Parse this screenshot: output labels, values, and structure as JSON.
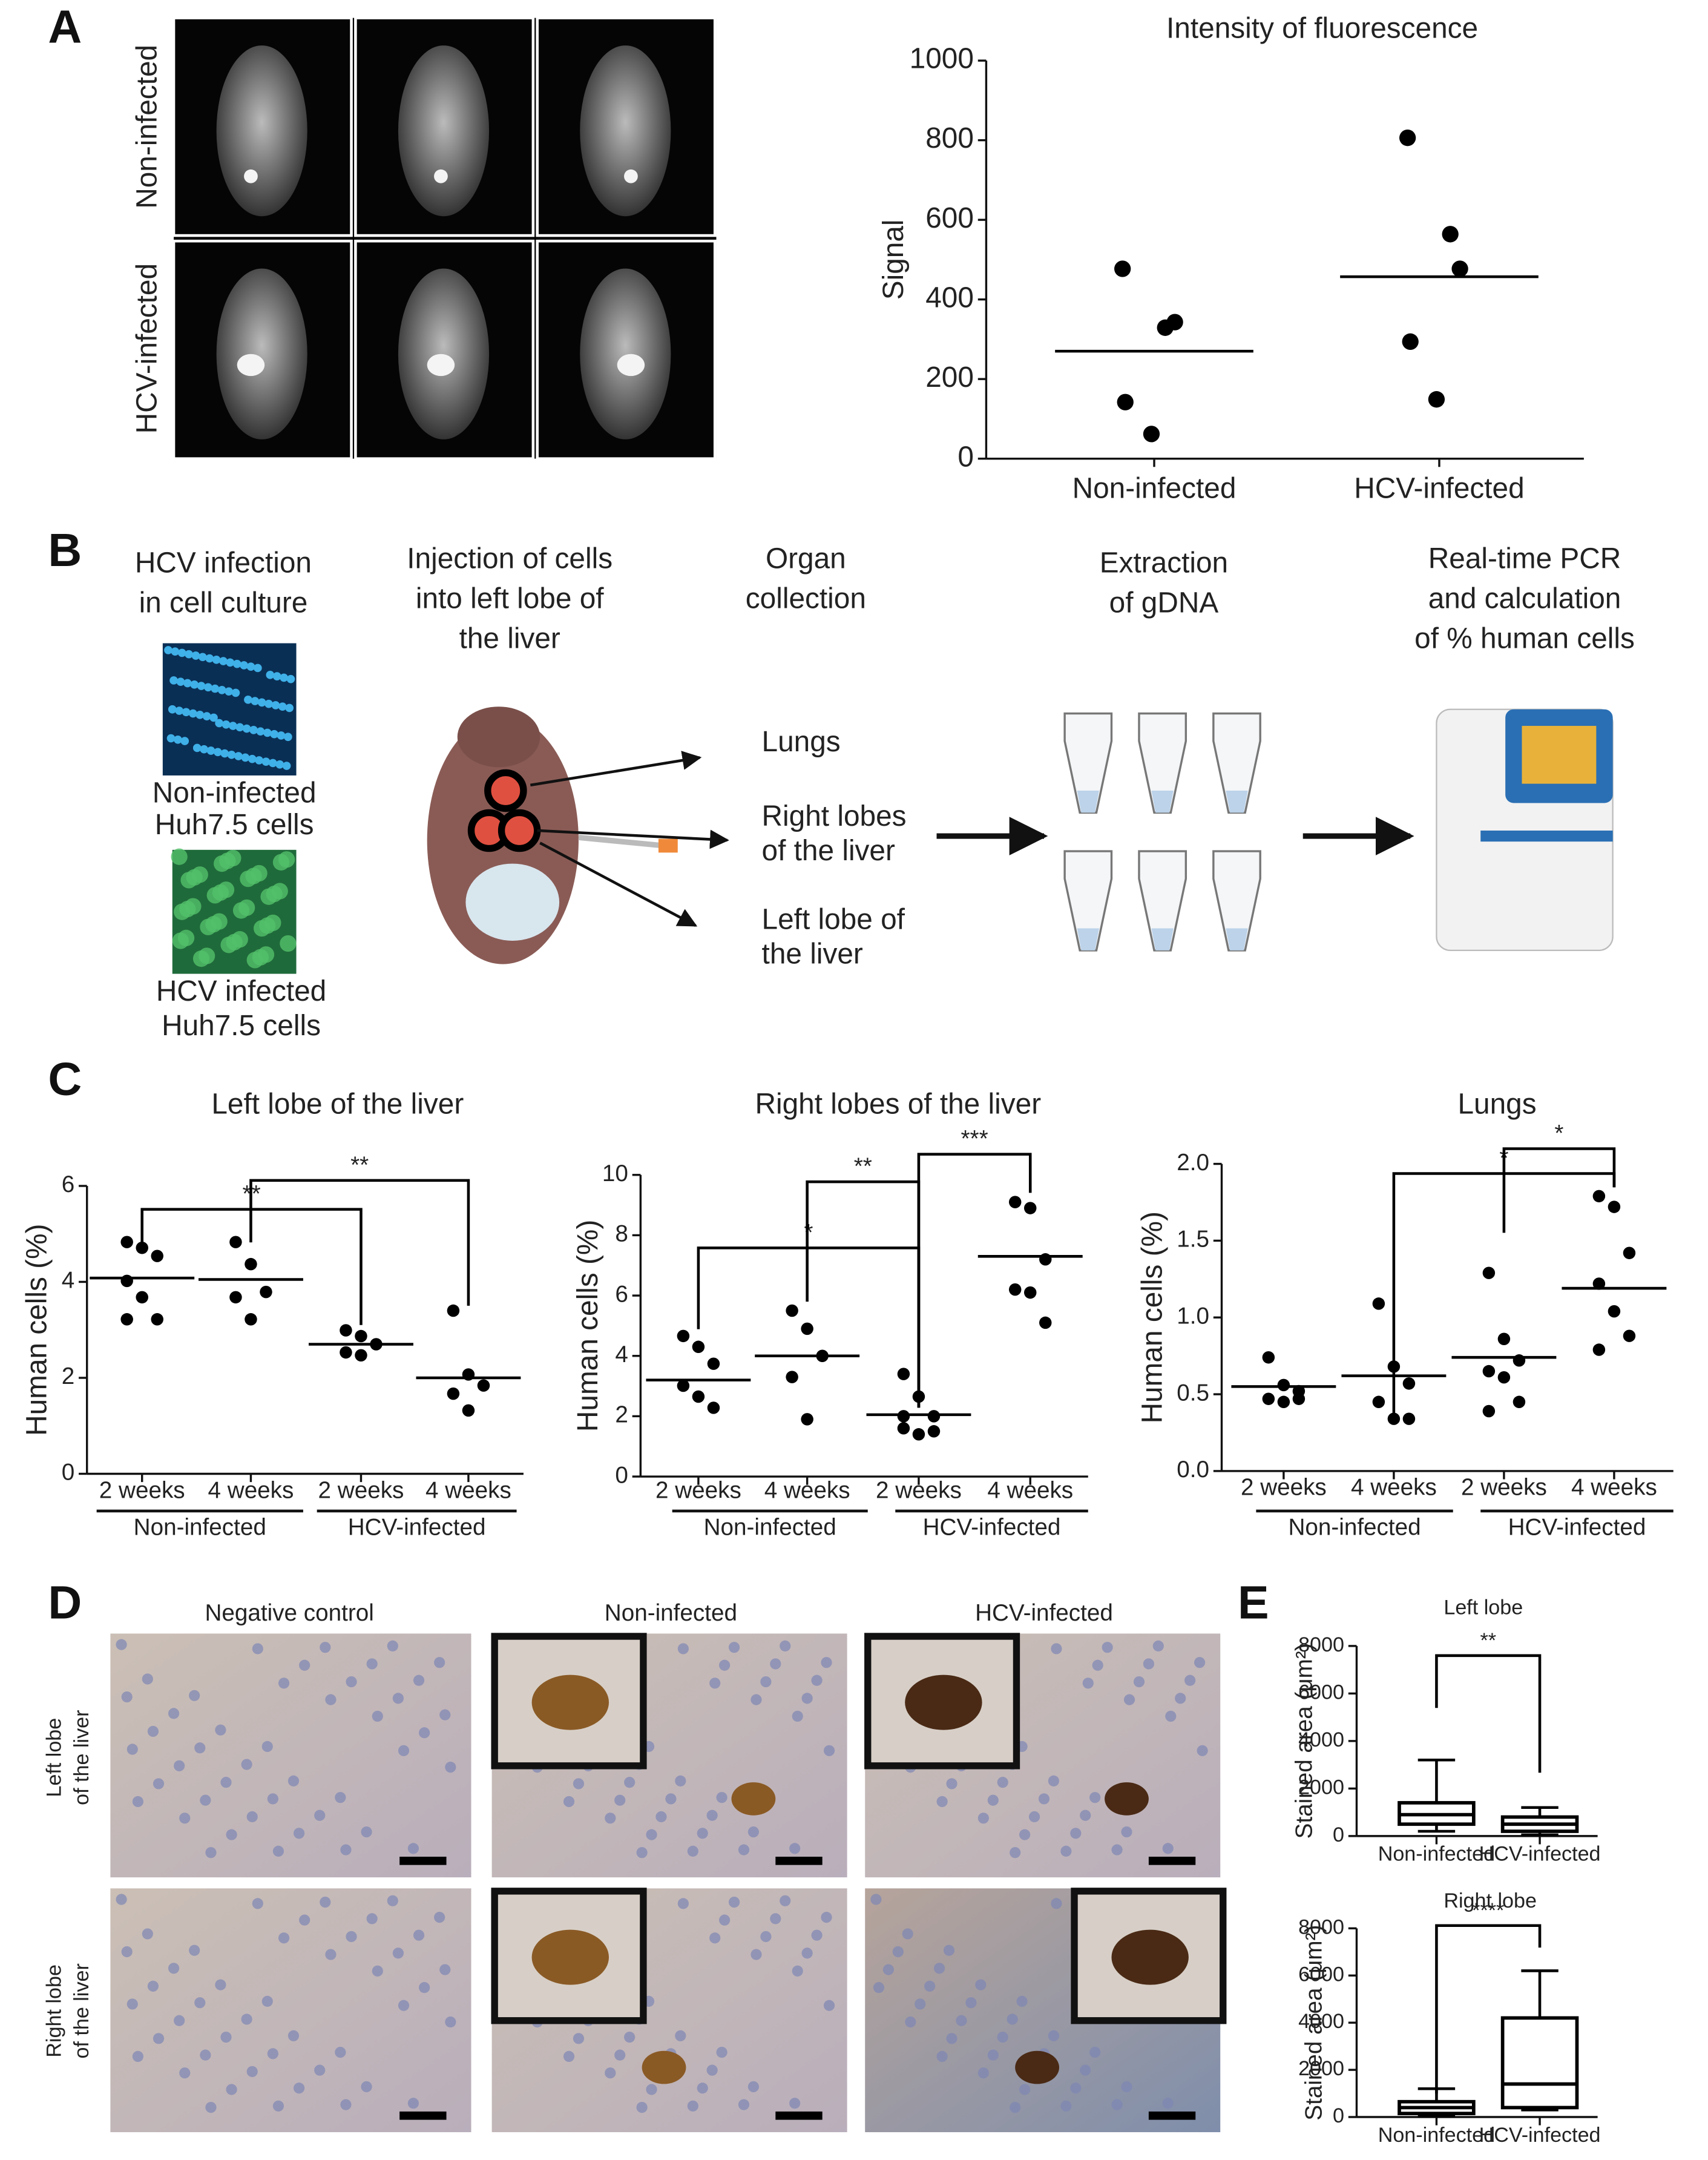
{
  "panel_labels": [
    "A",
    "B",
    "C",
    "D",
    "E"
  ],
  "imaging": {
    "rows": [
      "Non-infected",
      "HCV-infected"
    ]
  },
  "workflow": {
    "steps": [
      [
        "HCV infection",
        "in cell culture"
      ],
      [
        "Injection of cells",
        "into left lobe of",
        "the liver"
      ],
      [
        "Organ",
        "collection"
      ],
      [
        "Extraction",
        "of gDNA"
      ],
      [
        "Real-time PCR",
        "and calculation",
        "of % human cells"
      ]
    ],
    "cells": [
      [
        "Non-infected",
        "Huh7.5 cells"
      ],
      [
        "HCV infected",
        "Huh7.5 cells"
      ]
    ],
    "organs": [
      [
        "Lungs"
      ],
      [
        "Right lobes",
        "of the liver"
      ],
      [
        "Left lobe of",
        "the liver"
      ]
    ]
  },
  "histology": {
    "columns": [
      "Negative control",
      "Non-infected",
      "HCV-infected"
    ],
    "rows": [
      [
        "Left lobe",
        "of the liver"
      ],
      [
        "Right lobe",
        "of the liver"
      ]
    ]
  },
  "chart_data": [
    {
      "type": "dotplot",
      "title": "Intensity of fluorescence",
      "y_label": "Signal",
      "categories": [
        "Non-infected",
        "HCV-infected"
      ],
      "values": [
        [
          477,
          329,
          343,
          142,
          62
        ],
        [
          806,
          564,
          477,
          294,
          149
        ]
      ],
      "means": [
        270,
        457
      ],
      "ylim": [
        0,
        1000
      ],
      "yticks": [
        0,
        200,
        400,
        600,
        800,
        1000
      ]
    },
    {
      "type": "dotplot",
      "title": "Left lobe of the liver",
      "y_label": "Human cells (%)",
      "categories": [
        "2 weeks",
        "4 weeks",
        "2 weeks",
        "4 weeks"
      ],
      "groups": [
        "Non-infected",
        "HCV-infected"
      ],
      "values": [
        [
          4.83,
          4.71,
          4.54,
          4.02,
          3.68,
          3.22,
          3.22
        ],
        [
          4.83,
          4.37,
          3.79,
          3.68,
          3.22
        ],
        [
          2.99,
          2.87,
          2.7,
          2.53,
          2.47
        ],
        [
          3.4,
          2.07,
          1.84,
          1.67,
          1.32
        ]
      ],
      "means": [
        4.08,
        4.05,
        2.7,
        2.0
      ],
      "ylim": [
        0,
        6
      ],
      "yticks": [
        0,
        2,
        4,
        6
      ],
      "annotations": [
        "**",
        "**"
      ]
    },
    {
      "type": "dotplot",
      "title": "Right lobes of the liver",
      "y_label": "Human cells (%)",
      "categories": [
        "2 weeks",
        "4 weeks",
        "2 weeks",
        "4 weeks"
      ],
      "groups": [
        "Non-infected",
        "HCV-infected"
      ],
      "values": [
        [
          4.66,
          4.3,
          3.74,
          3.01,
          2.65,
          2.28
        ],
        [
          5.5,
          4.9,
          4.0,
          3.3,
          1.9
        ],
        [
          3.4,
          2.65,
          2.0,
          1.6,
          1.4,
          1.5,
          2.0
        ],
        [
          9.1,
          8.9,
          7.2,
          6.2,
          6.1,
          5.1
        ]
      ],
      "means": [
        3.2,
        4.0,
        2.05,
        7.3
      ],
      "ylim": [
        0,
        10
      ],
      "yticks": [
        0,
        2,
        4,
        6,
        8,
        10
      ],
      "annotations": [
        "*",
        "**",
        "***"
      ]
    },
    {
      "type": "dotplot",
      "title": "Lungs",
      "y_label": "Human cells (%)",
      "categories": [
        "2 weeks",
        "4 weeks",
        "2 weeks",
        "4 weeks"
      ],
      "groups": [
        "Non-infected",
        "HCV-infected"
      ],
      "values": [
        [
          0.74,
          0.56,
          0.52,
          0.47,
          0.45,
          0.47
        ],
        [
          1.09,
          0.68,
          0.57,
          0.45,
          0.34,
          0.34
        ],
        [
          1.29,
          0.86,
          0.72,
          0.65,
          0.61,
          0.45,
          0.39
        ],
        [
          1.79,
          1.72,
          1.42,
          1.22,
          1.04,
          0.88,
          0.79
        ]
      ],
      "means": [
        0.55,
        0.62,
        0.74,
        1.19
      ],
      "ylim": [
        0,
        2
      ],
      "yticks": [
        {
          "value": 0,
          "label": "0.0"
        },
        {
          "value": 0.5,
          "label": "0.5"
        },
        {
          "value": 1,
          "label": "1.0"
        },
        {
          "value": 1.5,
          "label": "1.5"
        },
        {
          "value": 2,
          "label": "2.0"
        }
      ],
      "annotations": [
        "*",
        "*"
      ]
    },
    {
      "type": "box",
      "title": "Left lobe",
      "y_label": "Stained area (μm²)",
      "categories": [
        "Non-infected",
        "HCV-infected"
      ],
      "boxes": [
        {
          "min": 200,
          "q1": 500,
          "median": 900,
          "q3": 1400,
          "max": 3200
        },
        {
          "min": 50,
          "q1": 200,
          "median": 500,
          "q3": 800,
          "max": 1200
        }
      ],
      "ylim": [
        0,
        8000
      ],
      "yticks": [
        0,
        2000,
        4000,
        6000,
        8000
      ],
      "annotations": [
        "**"
      ]
    },
    {
      "type": "box",
      "title": "Right lobe",
      "y_label": "Stained area (μm²)",
      "categories": [
        "Non-infected",
        "HCV-infected"
      ],
      "boxes": [
        {
          "min": 50,
          "q1": 150,
          "median": 400,
          "q3": 650,
          "max": 1200
        },
        {
          "min": 300,
          "q1": 400,
          "median": 1400,
          "q3": 4200,
          "max": 6200
        }
      ],
      "ylim": [
        0,
        8000
      ],
      "yticks": [
        0,
        2000,
        4000,
        6000,
        8000
      ],
      "annotations": [
        "****"
      ]
    }
  ]
}
